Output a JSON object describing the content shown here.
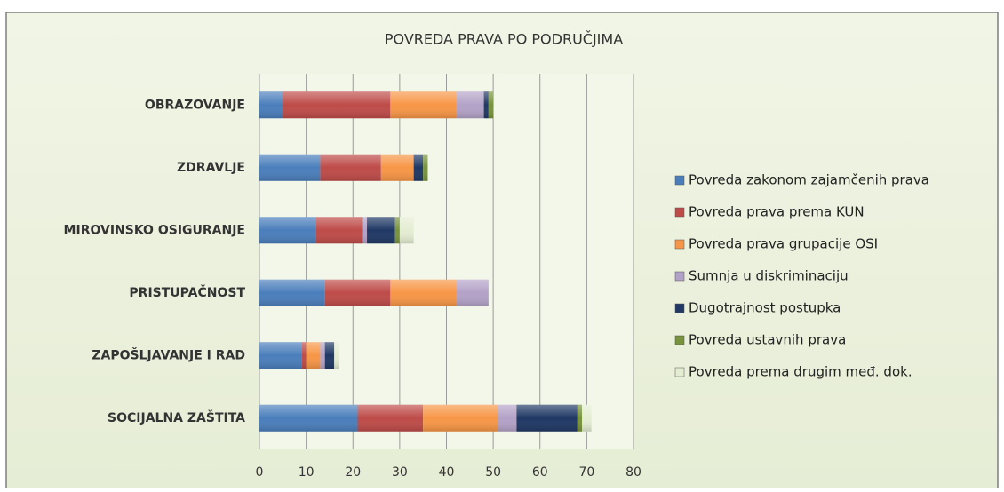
{
  "chart_data": {
    "type": "stacked_barh",
    "title": "POVREDA PRAVA PO PODRUČJIMA",
    "categories": [
      "OBRAZOVANJE",
      "ZDRAVLJE",
      "MIROVINSKO OSIGURANJE",
      "PRISTUPAČNOST",
      "ZAPOŠLJAVANJE I RAD",
      "SOCIJALNA ZAŠTITA"
    ],
    "series": [
      {
        "name": "Povreda zakonom zajamčenih prava",
        "color": "#4a7ebb",
        "values": [
          5,
          13,
          12,
          14,
          9,
          21
        ]
      },
      {
        "name": "Povreda prava prema KUN",
        "color": "#be4b48",
        "values": [
          23,
          13,
          10,
          14,
          1,
          14
        ]
      },
      {
        "name": "Povreda prava grupacije OSI",
        "color": "#f79646",
        "values": [
          14,
          7,
          0,
          14,
          3,
          16
        ]
      },
      {
        "name": "Sumnja u diskriminaciju",
        "color": "#b3a2c7",
        "values": [
          6,
          0,
          1,
          7,
          1,
          4
        ]
      },
      {
        "name": "Dugotrajnost postupka",
        "color": "#1f3864",
        "values": [
          1,
          2,
          6,
          0,
          2,
          13
        ]
      },
      {
        "name": "Povreda ustavnih prava",
        "color": "#77933c",
        "values": [
          1,
          1,
          1,
          0,
          0,
          1
        ]
      },
      {
        "name": "Povreda prema drugim međ. dok.",
        "color": "#e4edd2",
        "values": [
          0,
          0,
          3,
          0,
          1,
          2
        ]
      }
    ],
    "xlim": [
      0,
      80
    ],
    "xticks": [
      0,
      10,
      20,
      30,
      40,
      50,
      60,
      70,
      80
    ],
    "grid": true,
    "legend": "right"
  }
}
